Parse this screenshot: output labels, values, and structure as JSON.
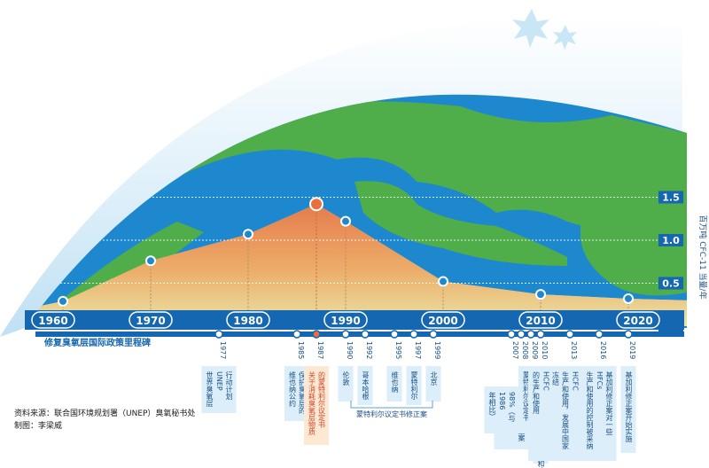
{
  "chart_data": {
    "type": "area",
    "title": "",
    "ylabel": "百万吨 CFC-11 当量/年",
    "ylim": [
      0,
      1.7
    ],
    "xlim": [
      1960,
      2025
    ],
    "y_ticks": [
      "0.0",
      "0.5",
      "1.0",
      "1.5"
    ],
    "y_tick_values": [
      0,
      0.5,
      1.0,
      1.5
    ],
    "x_ticks": [
      "1960",
      "1970",
      "1980",
      "1990",
      "2000",
      "2010",
      "2020"
    ],
    "x_tick_values": [
      1960,
      1970,
      1980,
      1990,
      2000,
      2010,
      2020
    ],
    "series": [
      {
        "x": [
          1961,
          1970,
          1980,
          1987,
          1990,
          2000,
          2010,
          2019
        ],
        "values": [
          0.29,
          0.76,
          1.07,
          1.42,
          1.22,
          0.52,
          0.37,
          0.32
        ]
      }
    ],
    "timeline_label": "修复臭氧层国际政策里程碑",
    "milestones": [
      {
        "year": "1977",
        "text": "行动计划 UNEP 世界臭氧层"
      },
      {
        "year": "1985",
        "text": "保护臭氧层的 维也纳公约"
      },
      {
        "year": "1987",
        "text": "的蒙特利尔议定书 关于消耗臭氧层物质",
        "highlight": true
      },
      {
        "year": "1990",
        "text": "伦敦"
      },
      {
        "year": "1992",
        "text": "哥本哈根"
      },
      {
        "year": "1995",
        "text": "维也纳"
      },
      {
        "year": "1997",
        "text": "蒙特利尔"
      },
      {
        "year": "1999",
        "text": "北京"
      },
      {
        "year": "2007",
        "text": "蒙特利尔修正案 加速淘汰 HCFC"
      },
      {
        "year": "2008",
        "text": "全球 ODS 使用量减 少 98%（与 1986 年相比）"
      },
      {
        "year": "2009",
        "text": "获得全世界批准 蒙特利尔议定书"
      },
      {
        "year": "2010",
        "text": "全球停产氟氯化物（CFCs）和哈龙"
      },
      {
        "year": "2013",
        "text": "发达国家削减 98% 的 HCFC 生产和使用，发展中国家 冻结 HCFC 的生产和使用"
      },
      {
        "year": "2016",
        "text": "基加利修正案对一些 HFCs 生产和使用的控制被采纳"
      },
      {
        "year": "2019",
        "text": "基加利修正案开始实施"
      }
    ],
    "bracket_label": "蒙特利尔议定书修正案"
  },
  "source": "资料来源：联合国环境规划署（UNEP）臭氧秘书处",
  "credit": "制图：李梁威"
}
